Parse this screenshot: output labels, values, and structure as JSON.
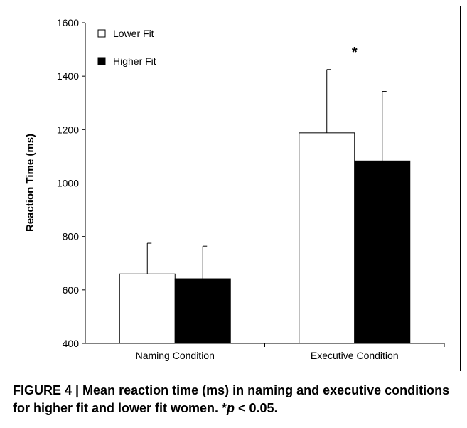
{
  "chart_data": {
    "type": "bar",
    "categories": [
      "Naming Condition",
      "Executive Condition"
    ],
    "series": [
      {
        "name": "Lower Fit",
        "values": [
          660,
          1188
        ],
        "error": [
          115,
          237
        ],
        "fill": "#ffffff"
      },
      {
        "name": "Higher Fit",
        "values": [
          642,
          1083
        ],
        "error": [
          122,
          260
        ],
        "fill": "#000000"
      }
    ],
    "ylabel": "Reaction Time (ms)",
    "xlabel": "",
    "ylim": [
      400,
      1600
    ],
    "yticks": [
      400,
      600,
      800,
      1000,
      1200,
      1400,
      1600
    ],
    "legend": "top-left",
    "grid": false,
    "annotations": [
      {
        "text": "*",
        "category": "Executive Condition"
      }
    ]
  },
  "caption": {
    "figure_label": "FIGURE 4 | Mean reaction time (ms) in naming and executive conditions for higher fit and lower fit women. *",
    "p_symbol": "p",
    "p_rest": " < 0.05."
  }
}
